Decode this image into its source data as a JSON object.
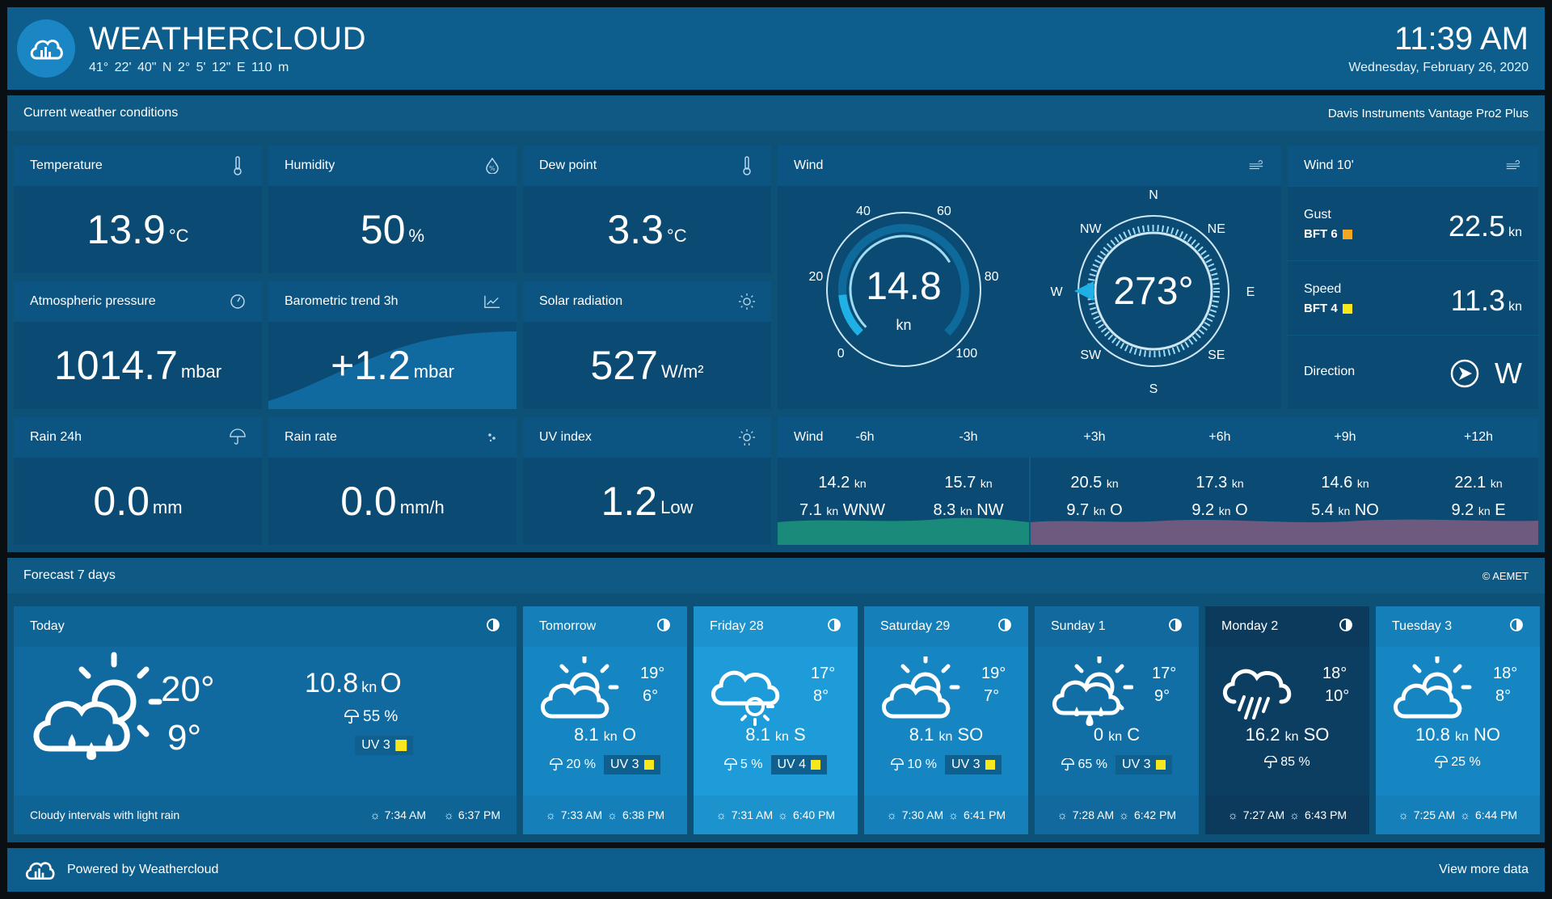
{
  "header": {
    "brand": "WEATHERCLOUD",
    "coords": "41° 22' 40\" N   2° 5' 12\" E   110 m",
    "time": "11:39 AM",
    "date": "Wednesday, February 26, 2020"
  },
  "current": {
    "title": "Current weather conditions",
    "device": "Davis Instruments Vantage Pro2 Plus",
    "temperature": {
      "label": "Temperature",
      "value": "13.9",
      "unit": "°C"
    },
    "humidity": {
      "label": "Humidity",
      "value": "50",
      "unit": "%"
    },
    "dewpoint": {
      "label": "Dew point",
      "value": "3.3",
      "unit": "°C"
    },
    "pressure": {
      "label": "Atmospheric pressure",
      "value": "1014.7",
      "unit": "mbar"
    },
    "baro": {
      "label": "Barometric trend 3h",
      "value": "+1.2",
      "unit": "mbar"
    },
    "solar": {
      "label": "Solar radiation",
      "value": "527",
      "unit": "W/m²"
    },
    "rain24": {
      "label": "Rain 24h",
      "value": "0.0",
      "unit": "mm"
    },
    "rainrate": {
      "label": "Rain rate",
      "value": "0.0",
      "unit": "mm/h"
    },
    "uv": {
      "label": "UV index",
      "value": "1.2",
      "unit": "Low"
    },
    "wind": {
      "label": "Wind",
      "speed": "14.8",
      "speed_unit": "kn",
      "speed_level": 0.148,
      "gauge_ticks": [
        "0",
        "20",
        "40",
        "60",
        "80",
        "100"
      ],
      "direction": "273°",
      "compass": [
        "N",
        "NE",
        "E",
        "SE",
        "S",
        "SW",
        "W",
        "NW"
      ]
    },
    "wind10": {
      "label": "Wind 10'",
      "gust_label": "Gust",
      "gust_bft": "BFT 6",
      "gust_value": "22.5",
      "gust_color": "#f5a623",
      "speed_label": "Speed",
      "speed_bft": "BFT 4",
      "speed_value": "11.3",
      "speed_color": "#f8e71c",
      "unit": "kn",
      "direction_label": "Direction",
      "direction_value": "W"
    },
    "wind_forecast": {
      "label": "Wind",
      "columns": [
        {
          "time": "-6h",
          "gust": "14.2",
          "speed": "7.1",
          "dir": "WNW"
        },
        {
          "time": "-3h",
          "gust": "15.7",
          "speed": "8.3",
          "dir": "NW"
        },
        {
          "time": "+3h",
          "gust": "20.5",
          "speed": "9.7",
          "dir": "O"
        },
        {
          "time": "+6h",
          "gust": "17.3",
          "speed": "9.2",
          "dir": "O"
        },
        {
          "time": "+9h",
          "gust": "14.6",
          "speed": "5.4",
          "dir": "NO"
        },
        {
          "time": "+12h",
          "gust": "22.1",
          "speed": "9.2",
          "dir": "E"
        }
      ],
      "unit": "kn"
    }
  },
  "forecast": {
    "title": "Forecast 7 days",
    "source": "© AEMET",
    "today": {
      "label": "Today",
      "high": "20°",
      "low": "9°",
      "wind": "10.8",
      "wind_unit": "kn",
      "wind_dir": "O",
      "rain": "55 %",
      "uv": "UV 3",
      "desc": "Cloudy intervals with light rain",
      "sunrise": "7:34 AM",
      "sunset": "6:37 PM"
    },
    "days": [
      {
        "label": "Tomorrow",
        "high": "19°",
        "low": "6°",
        "wind": "8.1",
        "dir": "O",
        "rain": "20 %",
        "uv": "UV 3",
        "sunrise": "7:33 AM",
        "sunset": "6:38 PM",
        "bg": "#1686c2",
        "icon": "partly-cloudy-icon"
      },
      {
        "label": "Friday 28",
        "high": "17°",
        "low": "8°",
        "wind": "8.1",
        "dir": "S",
        "rain": "5 %",
        "uv": "UV 4",
        "sunrise": "7:31 AM",
        "sunset": "6:40 PM",
        "bg": "#1e9bd9",
        "icon": "cloud-sun-behind-icon"
      },
      {
        "label": "Saturday 29",
        "high": "19°",
        "low": "7°",
        "wind": "8.1",
        "dir": "SO",
        "rain": "10 %",
        "uv": "UV 3",
        "sunrise": "7:30 AM",
        "sunset": "6:41 PM",
        "bg": "#1686c2",
        "icon": "partly-cloudy-icon"
      },
      {
        "label": "Sunday 1",
        "high": "17°",
        "low": "9°",
        "wind": "0",
        "dir": "C",
        "rain": "65 %",
        "uv": "UV 3",
        "sunrise": "7:28 AM",
        "sunset": "6:42 PM",
        "bg": "#126fa6",
        "icon": "cloud-sun-rain-icon"
      },
      {
        "label": "Monday 2",
        "high": "18°",
        "low": "10°",
        "wind": "16.2",
        "dir": "SO",
        "rain": "85 %",
        "uv": "",
        "sunrise": "7:27 AM",
        "sunset": "6:43 PM",
        "bg": "#0c3e62",
        "icon": "heavy-rain-icon"
      },
      {
        "label": "Tuesday 3",
        "high": "18°",
        "low": "8°",
        "wind": "10.8",
        "dir": "NO",
        "rain": "25 %",
        "uv": "",
        "sunrise": "7:25 AM",
        "sunset": "6:44 PM",
        "bg": "#1686c2",
        "icon": "partly-cloudy-icon"
      }
    ]
  },
  "footer": {
    "powered": "Powered by Weathercloud",
    "more": "View more data"
  }
}
